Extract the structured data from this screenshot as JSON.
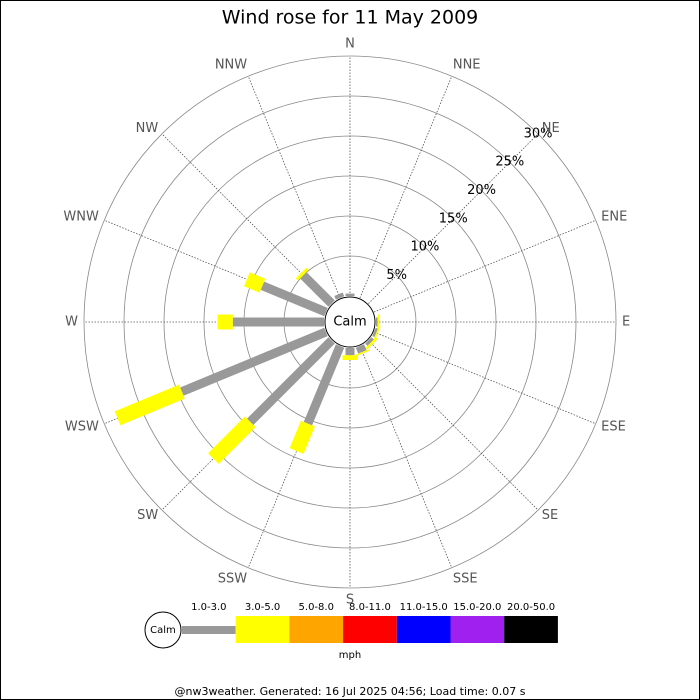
{
  "chart_data": {
    "type": "windrose",
    "title": "Wind rose for 11 May 2009",
    "directions": [
      "N",
      "NNE",
      "NE",
      "ENE",
      "E",
      "ESE",
      "SE",
      "SSE",
      "S",
      "SSW",
      "SW",
      "WSW",
      "W",
      "WNW",
      "NW",
      "NNW"
    ],
    "series": [
      {
        "name": "1.0-3.0",
        "color": "#999999",
        "values": [
          0.3,
          0,
          0,
          0,
          0.2,
          0.3,
          0.4,
          0.8,
          0.9,
          10.5,
          14.4,
          19.5,
          11.4,
          8.6,
          5.0,
          0.5
        ]
      },
      {
        "name": "3.0-5.0",
        "color": "#ffff00",
        "values": [
          0,
          0,
          0,
          0,
          0.2,
          0.2,
          0.3,
          0.2,
          0.6,
          3.7,
          6.5,
          8.7,
          1.9,
          2.1,
          0.4,
          0
        ]
      },
      {
        "name": "5.0-8.0",
        "color": "#ffa500",
        "values": [
          0,
          0,
          0,
          0,
          0,
          0,
          0,
          0,
          0,
          0,
          0,
          0,
          0,
          0,
          0,
          0
        ]
      },
      {
        "name": "8.0-11.0",
        "color": "#ff0000",
        "values": [
          0,
          0,
          0,
          0,
          0,
          0,
          0,
          0,
          0,
          0,
          0,
          0,
          0,
          0,
          0,
          0
        ]
      },
      {
        "name": "11.0-15.0",
        "color": "#0000ff",
        "values": [
          0,
          0,
          0,
          0,
          0,
          0,
          0,
          0,
          0,
          0,
          0,
          0,
          0,
          0,
          0,
          0
        ]
      },
      {
        "name": "15.0-20.0",
        "color": "#a020f0",
        "values": [
          0,
          0,
          0,
          0,
          0,
          0,
          0,
          0,
          0,
          0,
          0,
          0,
          0,
          0,
          0,
          0
        ]
      },
      {
        "name": "20.0-50.0",
        "color": "#000000",
        "values": [
          0,
          0,
          0,
          0,
          0,
          0,
          0,
          0,
          0,
          0,
          0,
          0,
          0,
          0,
          0,
          0
        ]
      }
    ],
    "rlim": [
      0,
      30
    ],
    "rticks": [
      {
        "value": 5,
        "label": "5%"
      },
      {
        "value": 10,
        "label": "10%"
      },
      {
        "value": 15,
        "label": "15%"
      },
      {
        "value": 20,
        "label": "20%"
      },
      {
        "value": 25,
        "label": "25%"
      },
      {
        "value": 30,
        "label": "30%"
      }
    ],
    "calm_label": "Calm",
    "units": "mph",
    "footer": "@nw3weather. Generated: 16 Jul 2025 04:56; Load time: 0.07 s"
  }
}
